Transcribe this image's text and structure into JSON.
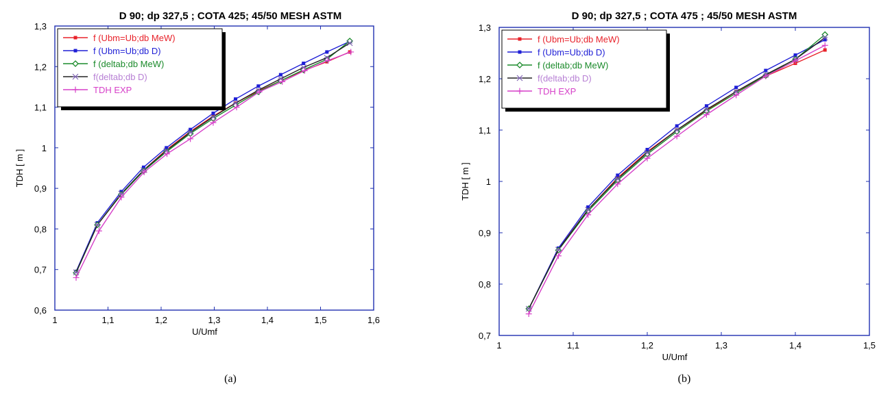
{
  "chart_data": [
    {
      "type": "line",
      "title": "D 90; dp 327,5 ; COTA 425; 45/50 MESH ASTM",
      "xlabel": "U/Umf",
      "ylabel": "TDH [ m ]",
      "caption": "(a)",
      "xlim": [
        1,
        1.6
      ],
      "ylim": [
        0.6,
        1.3
      ],
      "xticks": [
        "1",
        "1,1",
        "1,2",
        "1,3",
        "1,4",
        "1,5",
        "1,6"
      ],
      "yticks": [
        "0,6",
        "0,7",
        "0,8",
        "0,9",
        "1",
        "1,1",
        "1,2",
        "1,3"
      ],
      "legend_position": "top-left",
      "grid": false,
      "series": [
        {
          "name": "f (Ubm=Ub;db MeW)",
          "color": "#e8222a",
          "marker": "square",
          "x": [
            1.04,
            1.08,
            1.125,
            1.167,
            1.21,
            1.255,
            1.298,
            1.34,
            1.383,
            1.425,
            1.468,
            1.512,
            1.555
          ],
          "y": [
            0.695,
            0.81,
            0.885,
            0.945,
            0.995,
            1.04,
            1.078,
            1.11,
            1.14,
            1.165,
            1.19,
            1.212,
            1.236
          ]
        },
        {
          "name": "f (Ubm=Ub;db D)",
          "color": "#1f1fd6",
          "marker": "square",
          "x": [
            1.04,
            1.08,
            1.125,
            1.167,
            1.21,
            1.255,
            1.298,
            1.34,
            1.383,
            1.425,
            1.468,
            1.512,
            1.555
          ],
          "y": [
            0.695,
            0.815,
            0.892,
            0.952,
            1.0,
            1.045,
            1.085,
            1.12,
            1.152,
            1.18,
            1.208,
            1.236,
            1.262
          ]
        },
        {
          "name": "f (deltab;db MeW)",
          "color": "#1a8a2a",
          "marker": "diamond",
          "x": [
            1.04,
            1.08,
            1.125,
            1.167,
            1.21,
            1.255,
            1.298,
            1.34,
            1.383,
            1.425,
            1.468,
            1.512,
            1.555
          ],
          "y": [
            0.692,
            0.81,
            0.885,
            0.943,
            0.99,
            1.035,
            1.072,
            1.105,
            1.138,
            1.165,
            1.192,
            1.218,
            1.263
          ]
        },
        {
          "name": "f(deltab;db D)",
          "color": "#222222",
          "label_color": "#b77fd4",
          "marker": "star",
          "x": [
            1.04,
            1.08,
            1.125,
            1.167,
            1.21,
            1.255,
            1.298,
            1.34,
            1.383,
            1.425,
            1.468,
            1.512,
            1.555
          ],
          "y": [
            0.693,
            0.81,
            0.887,
            0.945,
            0.993,
            1.038,
            1.076,
            1.11,
            1.142,
            1.17,
            1.198,
            1.222,
            1.258
          ]
        },
        {
          "name": "TDH EXP",
          "color": "#d63fc8",
          "marker": "plus",
          "x": [
            1.04,
            1.083,
            1.125,
            1.168,
            1.211,
            1.255,
            1.298,
            1.342,
            1.385,
            1.428,
            1.47,
            1.514,
            1.557
          ],
          "y": [
            0.68,
            0.795,
            0.878,
            0.94,
            0.985,
            1.022,
            1.062,
            1.1,
            1.138,
            1.163,
            1.19,
            1.215,
            1.236
          ]
        }
      ]
    },
    {
      "type": "line",
      "title": "D 90; dp 327,5 ; COTA 475 ; 45/50 MESH ASTM",
      "xlabel": "U/Umf",
      "ylabel": "TDH [ m ]",
      "caption": "(b)",
      "xlim": [
        1,
        1.5
      ],
      "ylim": [
        0.7,
        1.3
      ],
      "xticks": [
        "1",
        "1,1",
        "1,2",
        "1,3",
        "1,4",
        "1,5"
      ],
      "yticks": [
        "0,7",
        "0,8",
        "0,9",
        "1",
        "1,1",
        "1,2",
        "1,3"
      ],
      "legend_position": "top-left",
      "grid": false,
      "series": [
        {
          "name": "f (Ubm=Ub;db MeW)",
          "color": "#e8222a",
          "marker": "square",
          "x": [
            1.04,
            1.08,
            1.12,
            1.16,
            1.2,
            1.24,
            1.28,
            1.32,
            1.36,
            1.4,
            1.44
          ],
          "y": [
            0.752,
            0.868,
            0.945,
            1.007,
            1.058,
            1.1,
            1.138,
            1.175,
            1.205,
            1.23,
            1.256
          ]
        },
        {
          "name": "f (Ubm=Ub;db D)",
          "color": "#1f1fd6",
          "marker": "square",
          "x": [
            1.04,
            1.08,
            1.12,
            1.16,
            1.2,
            1.24,
            1.28,
            1.32,
            1.36,
            1.4,
            1.44
          ],
          "y": [
            0.752,
            0.87,
            0.95,
            1.012,
            1.062,
            1.108,
            1.147,
            1.183,
            1.216,
            1.246,
            1.276
          ]
        },
        {
          "name": "f (deltab;db MeW)",
          "color": "#1a8a2a",
          "marker": "diamond",
          "x": [
            1.04,
            1.08,
            1.12,
            1.16,
            1.2,
            1.24,
            1.28,
            1.32,
            1.36,
            1.4,
            1.44
          ],
          "y": [
            0.752,
            0.866,
            0.942,
            1.002,
            1.053,
            1.097,
            1.137,
            1.172,
            1.206,
            1.238,
            1.286
          ]
        },
        {
          "name": "f(deltab;db D)",
          "color": "#222222",
          "label_color": "#b77fd4",
          "marker": "star",
          "x": [
            1.04,
            1.08,
            1.12,
            1.16,
            1.2,
            1.24,
            1.28,
            1.32,
            1.36,
            1.4,
            1.44
          ],
          "y": [
            0.752,
            0.867,
            0.945,
            1.005,
            1.056,
            1.1,
            1.14,
            1.175,
            1.208,
            1.238,
            1.28
          ]
        },
        {
          "name": "TDH EXP",
          "color": "#d63fc8",
          "marker": "plus",
          "x": [
            1.04,
            1.08,
            1.12,
            1.16,
            1.2,
            1.24,
            1.28,
            1.32,
            1.36,
            1.4,
            1.44
          ],
          "y": [
            0.742,
            0.855,
            0.935,
            0.995,
            1.045,
            1.088,
            1.13,
            1.168,
            1.205,
            1.235,
            1.265
          ]
        }
      ]
    }
  ]
}
